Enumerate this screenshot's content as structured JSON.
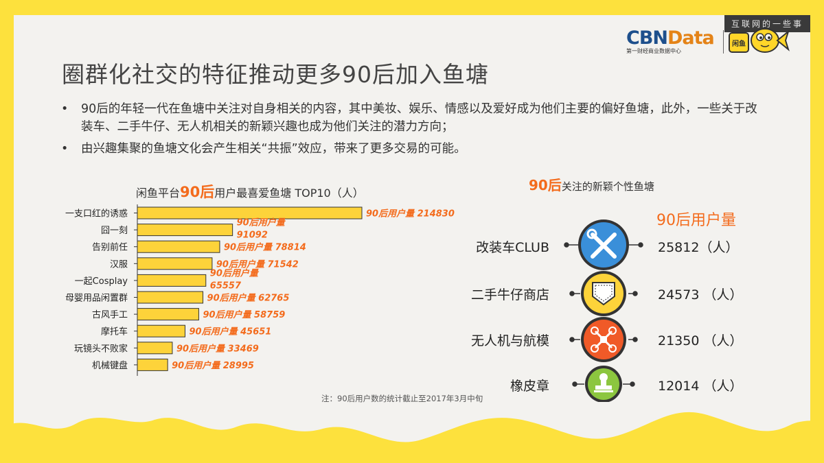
{
  "watermark": "互联网的一些事",
  "logo": {
    "brand_main": "CBN",
    "brand_accent": "Data",
    "brand_sub": "第一财经商业数据中心",
    "xianyu_badge": "闲鱼"
  },
  "title": "圈群化社交的特征推动更多90后加入鱼塘",
  "bullets": [
    {
      "dot": "•",
      "text": "90后的年轻一代在鱼塘中关注对自身相关的内容，其中美妆、娱乐、情感以及爱好成为他们主要的偏好鱼塘，此外，一些关于改装车、二手牛仔、无人机相关的新颖兴趣也成为他们关注的潜力方向；"
    },
    {
      "dot": "•",
      "text": "由兴趣集聚的鱼塘文化会产生相关“共振”效应，带来了更多交易的可能。"
    }
  ],
  "chart_data": {
    "type": "bar",
    "orientation": "horizontal",
    "title_pre": "闲鱼平台",
    "title_hl": "90后",
    "title_post": "用户最喜爱鱼塘 TOP10（人）",
    "categories": [
      "一支口红的诱惑",
      "囧一刻",
      "告别前任",
      "汉服",
      "一起Cosplay",
      "母婴用品闲置群",
      "古风手工",
      "摩托车",
      "玩镜头不败家",
      "机械键盘"
    ],
    "values": [
      214830,
      91092,
      78814,
      71542,
      65557,
      62765,
      58759,
      45651,
      33469,
      28995
    ],
    "data_label_prefix": "90后用户量",
    "bar_color": "#fdd33a",
    "bar_stroke": "#333333",
    "label_color": "#f36b1c",
    "note": "注：90后用户数的统计截止至2017年3月中旬"
  },
  "right": {
    "title_hl": "90后",
    "title_post": "关注的新颖个性鱼塘",
    "header": "90后用户量",
    "items": [
      {
        "label": "改装车CLUB",
        "value": "25812（人）",
        "icon": "tools-icon",
        "color": "#3a8fd9"
      },
      {
        "label": "二手牛仔商店",
        "value": "24573 （人）",
        "icon": "denim-pocket-icon",
        "color": "#fdd33a"
      },
      {
        "label": "无人机与航模",
        "value": "21350 （人）",
        "icon": "drone-icon",
        "color": "#f05a28"
      },
      {
        "label": "橡皮章",
        "value": "12014 （人）",
        "icon": "rubber-stamp-icon",
        "color": "#8cc63f"
      }
    ]
  }
}
